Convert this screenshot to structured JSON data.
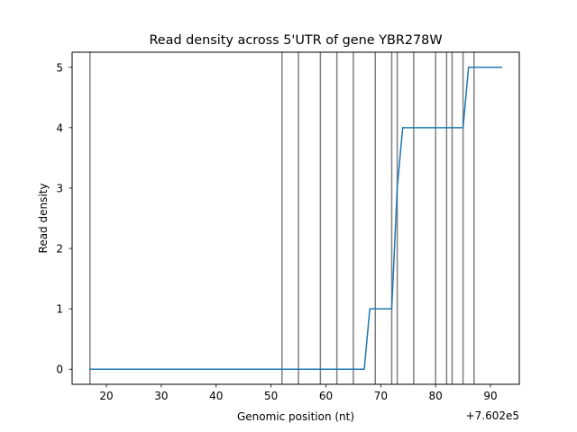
{
  "chart_data": {
    "type": "line",
    "title": "Read density across 5'UTR of gene YBR278W",
    "xlabel": "Genomic position (nt)",
    "ylabel": "Read density",
    "x_offset_label": "+7.602e5",
    "xlim": [
      13.75,
      95.25
    ],
    "ylim": [
      -0.25,
      5.25
    ],
    "xticks": [
      20,
      30,
      40,
      50,
      60,
      70,
      80,
      90
    ],
    "yticks": [
      0,
      1,
      2,
      3,
      4,
      5
    ],
    "grid": false,
    "vertical_lines": {
      "color": "#808080",
      "x": [
        17,
        52,
        55,
        59,
        62,
        65,
        69,
        72,
        73,
        76,
        80,
        82,
        83,
        85,
        87
      ]
    },
    "series": [
      {
        "color": "#1f77b4",
        "x": [
          17,
          18,
          19,
          20,
          21,
          22,
          23,
          24,
          25,
          26,
          27,
          28,
          29,
          30,
          31,
          32,
          33,
          34,
          35,
          36,
          37,
          38,
          39,
          40,
          41,
          42,
          43,
          44,
          45,
          46,
          47,
          48,
          49,
          50,
          51,
          52,
          53,
          54,
          55,
          56,
          57,
          58,
          59,
          60,
          61,
          62,
          63,
          64,
          65,
          66,
          67,
          68,
          69,
          70,
          71,
          72,
          73,
          74,
          75,
          76,
          77,
          78,
          79,
          80,
          81,
          82,
          83,
          84,
          85,
          86,
          87,
          88,
          89,
          90,
          91,
          92
        ],
        "y": [
          0,
          0,
          0,
          0,
          0,
          0,
          0,
          0,
          0,
          0,
          0,
          0,
          0,
          0,
          0,
          0,
          0,
          0,
          0,
          0,
          0,
          0,
          0,
          0,
          0,
          0,
          0,
          0,
          0,
          0,
          0,
          0,
          0,
          0,
          0,
          0,
          0,
          0,
          0,
          0,
          0,
          0,
          0,
          0,
          0,
          0,
          0,
          0,
          0,
          0,
          0,
          1,
          1,
          1,
          1,
          1,
          3,
          4,
          4,
          4,
          4,
          4,
          4,
          4,
          4,
          4,
          4,
          4,
          4,
          5,
          5,
          5,
          5,
          5,
          5,
          5
        ]
      }
    ]
  }
}
